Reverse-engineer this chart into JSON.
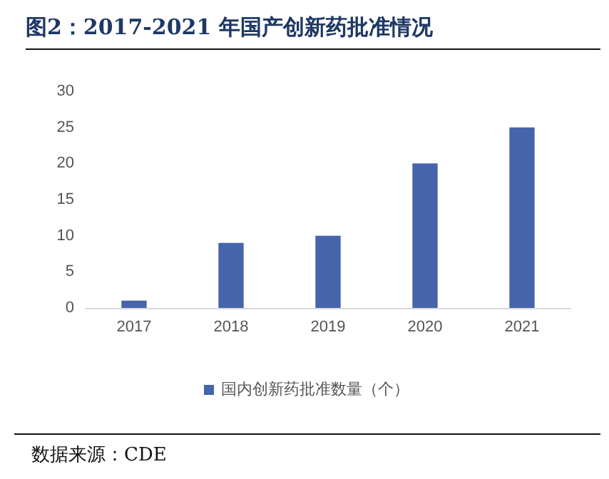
{
  "chart_data": {
    "type": "bar",
    "title": "图2：2017-2021 年国产创新药批准情况",
    "categories": [
      "2017",
      "2018",
      "2019",
      "2020",
      "2021"
    ],
    "series": [
      {
        "name": "国内创新药批准数量（个）",
        "color": "#4664ab",
        "values": [
          1,
          9,
          10,
          20,
          25
        ]
      }
    ],
    "ylim": [
      0,
      30
    ],
    "yticks": [
      0,
      5,
      10,
      15,
      20,
      25,
      30
    ],
    "grid": false,
    "legend": "bottom",
    "annotations": [
      "数据来源：CDE"
    ]
  }
}
